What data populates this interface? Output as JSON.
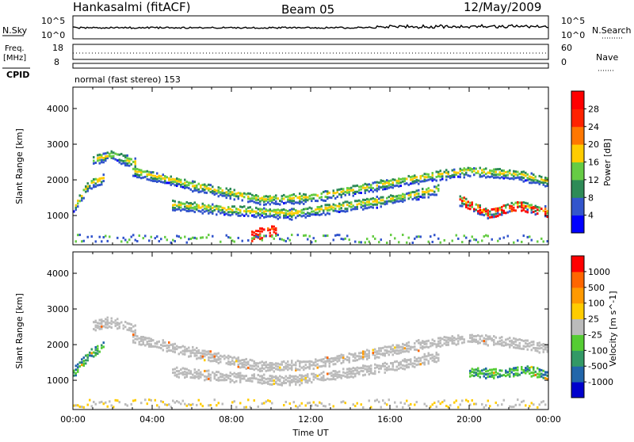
{
  "header": {
    "station": "Hankasalmi (fitACF)",
    "beam": "Beam 05",
    "date": "12/May/2009"
  },
  "strip": {
    "nsky_label": "N.Sky",
    "nsky_ticks": [
      "10^5",
      "10^0"
    ],
    "nsky_right_ticks": [
      "10^5",
      "10^0"
    ],
    "nsearch_label": "N.Search",
    "freq_label": "Freq.",
    "freq_unit": "[MHz]",
    "freq_ticks": [
      "18",
      "8"
    ],
    "nave_ticks": [
      "60",
      "0"
    ],
    "nave_label": "Nave",
    "cpid_label": "CPID",
    "cpid_text": "normal (fast stereo) 153"
  },
  "chart_data": [
    {
      "type": "heatmap",
      "title": "",
      "xlabel": "",
      "ylabel": "Slant Range [km]",
      "x_ticks": [
        "00:00",
        "04:00",
        "08:00",
        "12:00",
        "16:00",
        "20:00",
        "00:00"
      ],
      "xlim_hours": [
        0,
        24
      ],
      "y_ticks": [
        "1000",
        "2000",
        "3000",
        "4000"
      ],
      "ylim": [
        180,
        4600
      ],
      "colorbar": {
        "label": "Power [dB]",
        "ticks": [
          "4",
          "8",
          "12",
          "16",
          "20",
          "24",
          "28"
        ],
        "colors": [
          "#0000ff",
          "#3355cc",
          "#2e8b57",
          "#66cc44",
          "#ffcc00",
          "#ff7700",
          "#ff2200",
          "#ff0000"
        ]
      },
      "bands": [
        {
          "x": [
            0.0,
            0.8,
            1.6
          ],
          "y": [
            1200,
            1900,
            2100
          ]
        },
        {
          "x": [
            1.0,
            2.0,
            3.2
          ],
          "y": [
            2600,
            2750,
            2500
          ]
        },
        {
          "x": [
            3.0,
            6.0,
            9.5,
            12.0,
            14.0,
            16.0,
            18.0,
            20.0,
            22.5,
            24.0
          ],
          "y": [
            2300,
            1900,
            1500,
            1550,
            1750,
            1950,
            2150,
            2300,
            2200,
            2000
          ]
        },
        {
          "x": [
            5.0,
            8.0,
            11.0,
            13.0,
            15.5,
            17.0,
            18.5
          ],
          "y": [
            1350,
            1200,
            1100,
            1250,
            1450,
            1600,
            1800
          ]
        },
        {
          "x": [
            19.5,
            21.0,
            22.5,
            24.0
          ],
          "y": [
            1500,
            1100,
            1350,
            1150
          ]
        },
        {
          "x": [
            9.0,
            9.7,
            10.3
          ],
          "y": [
            480,
            600,
            650
          ]
        }
      ]
    },
    {
      "type": "heatmap",
      "title": "",
      "xlabel": "Time UT",
      "ylabel": "Slant Range [km]",
      "x_ticks": [
        "00:00",
        "04:00",
        "08:00",
        "12:00",
        "16:00",
        "20:00",
        "00:00"
      ],
      "xlim_hours": [
        0,
        24
      ],
      "y_ticks": [
        "1000",
        "2000",
        "3000",
        "4000"
      ],
      "ylim": [
        180,
        4600
      ],
      "colorbar": {
        "label": "Velocity [m s^-1]",
        "ticks": [
          "1000",
          "500",
          "100",
          "25",
          "-25",
          "-100",
          "-500",
          "-1000"
        ],
        "colors": [
          "#0000cc",
          "#2266aa",
          "#339966",
          "#55cc33",
          "#bbbbbb",
          "#ffcc00",
          "#ff9900",
          "#ff6600",
          "#ff0000"
        ]
      },
      "bands": [
        {
          "x": [
            0.0,
            0.8,
            1.6
          ],
          "y": [
            1250,
            1750,
            2050
          ]
        },
        {
          "x": [
            1.0,
            2.0,
            3.2
          ],
          "y": [
            2600,
            2700,
            2500
          ]
        },
        {
          "x": [
            3.0,
            6.0,
            9.5,
            12.0,
            14.0,
            16.0,
            18.0,
            20.0,
            22.5,
            24.0
          ],
          "y": [
            2250,
            1850,
            1450,
            1500,
            1700,
            1900,
            2100,
            2250,
            2100,
            1950
          ]
        },
        {
          "x": [
            5.0,
            8.0,
            11.0,
            13.0,
            15.5,
            17.0,
            18.5
          ],
          "y": [
            1300,
            1150,
            1050,
            1200,
            1400,
            1550,
            1750
          ]
        },
        {
          "x": [
            20.0,
            21.5,
            23.0,
            24.0
          ],
          "y": [
            1300,
            1250,
            1350,
            1200
          ]
        }
      ]
    }
  ]
}
